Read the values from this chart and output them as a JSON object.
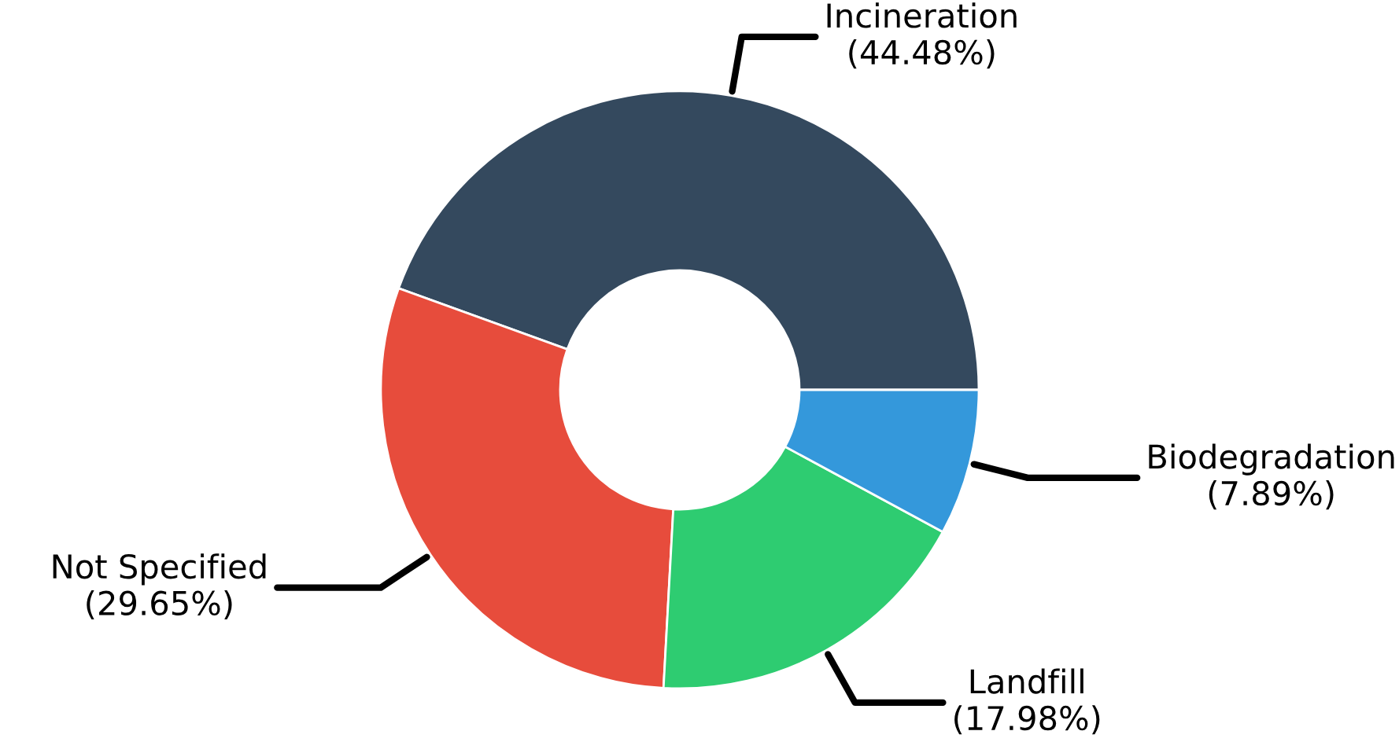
{
  "chart_data": {
    "type": "donut",
    "categories": [
      "Incineration",
      "Not Specified",
      "Landfill",
      "Biodegradation"
    ],
    "values": [
      44.48,
      29.65,
      17.98,
      7.89
    ],
    "colors": [
      "#34495e",
      "#e74c3c",
      "#2ecc71",
      "#3498db"
    ],
    "value_labels": [
      "(44.48%)",
      "(29.65%)",
      "(17.98%)",
      "(7.89%)"
    ],
    "legend": false
  }
}
